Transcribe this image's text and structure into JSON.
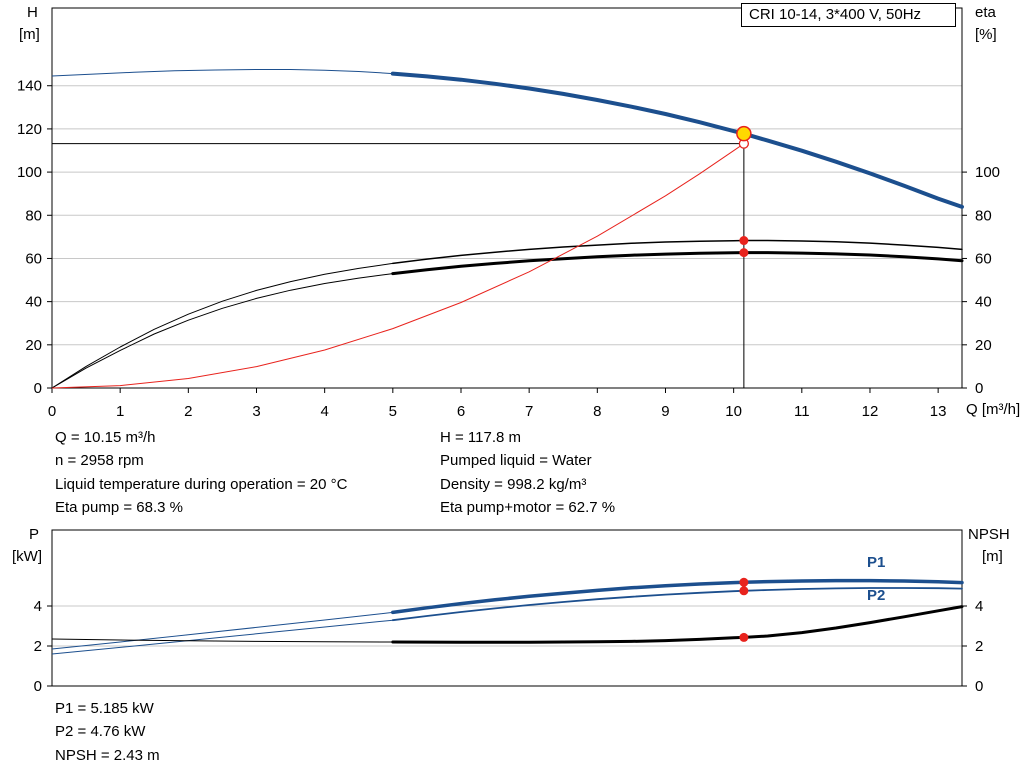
{
  "colors": {
    "blue": "#1c4f8e",
    "black": "#000000",
    "red": "#e8231d",
    "duty_yellow": "#ffd800",
    "grid": "#c8c8c8"
  },
  "chart_data": [
    {
      "id": "hq",
      "type": "line",
      "title": "CRI 10-14, 3*400 V, 50Hz",
      "x_label": "Q [m³/h]",
      "y_left_label": "H",
      "y_left_unit": "[m]",
      "y_right_label": "eta",
      "y_right_unit": "[%]",
      "xlim": [
        0,
        13.35
      ],
      "ylim": [
        0,
        176
      ],
      "x_ticks": [
        0,
        1,
        2,
        3,
        4,
        5,
        6,
        7,
        8,
        9,
        10,
        11,
        12,
        13
      ],
      "y_ticks_left": [
        0,
        20,
        40,
        60,
        80,
        100,
        120,
        140
      ],
      "y_ticks_right": [
        0,
        20,
        40,
        60,
        80,
        100
      ],
      "grid_values": [
        20,
        40,
        60,
        80,
        100,
        120,
        140
      ],
      "series": [
        {
          "name": "head-curve",
          "color": "blue",
          "axis": "left",
          "thin_width": 1,
          "thick_width": 4,
          "thick_from": 5,
          "points": [
            [
              0,
              144.5
            ],
            [
              0.6,
              145.4
            ],
            [
              1.2,
              146.2
            ],
            [
              1.8,
              146.9
            ],
            [
              2.4,
              147.3
            ],
            [
              3,
              147.5
            ],
            [
              3.5,
              147.5
            ],
            [
              4,
              147.2
            ],
            [
              4.5,
              146.6
            ],
            [
              5,
              145.6
            ],
            [
              5.5,
              144.3
            ],
            [
              6,
              142.8
            ],
            [
              6.5,
              140.9
            ],
            [
              7,
              138.7
            ],
            [
              7.5,
              136.2
            ],
            [
              8,
              133.4
            ],
            [
              8.5,
              130.3
            ],
            [
              9,
              126.9
            ],
            [
              9.5,
              123.1
            ],
            [
              10,
              119
            ],
            [
              10.15,
              117.8
            ],
            [
              10.5,
              114.6
            ],
            [
              11,
              109.9
            ],
            [
              11.5,
              104.8
            ],
            [
              12,
              99.4
            ],
            [
              12.5,
              93.7
            ],
            [
              13,
              87.7
            ],
            [
              13.35,
              83.9
            ]
          ]
        },
        {
          "name": "eta-pump-curve",
          "color": "black",
          "axis": "right",
          "thin_width": 1,
          "thick_width": 1.5,
          "thick_from": 5,
          "points": [
            [
              0,
              0
            ],
            [
              0.5,
              10
            ],
            [
              1,
              19
            ],
            [
              1.5,
              27.2
            ],
            [
              2,
              34.2
            ],
            [
              2.5,
              40.2
            ],
            [
              3,
              45.2
            ],
            [
              3.5,
              49.3
            ],
            [
              4,
              52.7
            ],
            [
              4.5,
              55.4
            ],
            [
              5,
              57.7
            ],
            [
              5.5,
              59.7
            ],
            [
              6,
              61.4
            ],
            [
              6.5,
              62.9
            ],
            [
              7,
              64.2
            ],
            [
              7.5,
              65.3
            ],
            [
              8,
              66.2
            ],
            [
              8.5,
              67
            ],
            [
              9,
              67.6
            ],
            [
              9.5,
              68
            ],
            [
              10,
              68.2
            ],
            [
              10.15,
              68.3
            ],
            [
              10.5,
              68.3
            ],
            [
              11,
              68.1
            ],
            [
              11.5,
              67.7
            ],
            [
              12,
              67.1
            ],
            [
              12.5,
              66.2
            ],
            [
              13,
              65.1
            ],
            [
              13.35,
              64.2
            ]
          ]
        },
        {
          "name": "eta-pump-motor-curve",
          "color": "black",
          "axis": "right",
          "thin_width": 1,
          "thick_width": 3,
          "thick_from": 5,
          "points": [
            [
              0,
              0
            ],
            [
              0.5,
              9.2
            ],
            [
              1,
              17.4
            ],
            [
              1.5,
              25
            ],
            [
              2,
              31.4
            ],
            [
              2.5,
              36.9
            ],
            [
              3,
              41.5
            ],
            [
              3.5,
              45.3
            ],
            [
              4,
              48.4
            ],
            [
              4.5,
              50.9
            ],
            [
              5,
              53
            ],
            [
              5.5,
              54.8
            ],
            [
              6,
              56.4
            ],
            [
              6.5,
              57.7
            ],
            [
              7,
              58.9
            ],
            [
              7.5,
              59.9
            ],
            [
              8,
              60.8
            ],
            [
              8.5,
              61.5
            ],
            [
              9,
              62
            ],
            [
              9.5,
              62.4
            ],
            [
              10,
              62.6
            ],
            [
              10.15,
              62.7
            ],
            [
              10.5,
              62.7
            ],
            [
              11,
              62.5
            ],
            [
              11.5,
              62.1
            ],
            [
              12,
              61.6
            ],
            [
              12.5,
              60.8
            ],
            [
              13,
              59.8
            ],
            [
              13.35,
              58.9
            ]
          ]
        },
        {
          "name": "affinity-parabola",
          "color": "red",
          "axis": "left",
          "thin_width": 1,
          "thick_width": 1,
          "thick_from": 99,
          "points": [
            [
              0,
              0
            ],
            [
              1,
              1.1
            ],
            [
              2,
              4.4
            ],
            [
              3,
              9.9
            ],
            [
              4,
              17.6
            ],
            [
              5,
              27.5
            ],
            [
              6,
              39.6
            ],
            [
              7,
              53.8
            ],
            [
              8,
              70.3
            ],
            [
              9,
              89
            ],
            [
              9.5,
              99.2
            ],
            [
              10,
              109.9
            ],
            [
              10.15,
              113.2
            ]
          ]
        }
      ],
      "duty_point": {
        "q": 10.15,
        "h": 117.8
      },
      "requested_point": {
        "q": 10.15,
        "h": 113.2
      },
      "markers": [
        {
          "q": 10.15,
          "v": 68.3
        },
        {
          "q": 10.15,
          "v": 62.7
        }
      ]
    },
    {
      "id": "power",
      "type": "line",
      "x_label": "",
      "y_left_label": "P",
      "y_left_unit": "[kW]",
      "y_right_label": "NPSH",
      "y_right_unit": "[m]",
      "xlim": [
        0,
        13.35
      ],
      "ylim": [
        0,
        7.8
      ],
      "x_ticks": [],
      "y_ticks_left": [
        0,
        2,
        4
      ],
      "y_ticks_right": [
        0,
        2,
        4
      ],
      "grid_values": [
        2,
        4
      ],
      "series": [
        {
          "name": "p1-curve",
          "label": "P1",
          "color": "blue",
          "axis": "left",
          "thin_width": 1,
          "thick_width": 3.5,
          "thick_from": 5,
          "points": [
            [
              0,
              1.85
            ],
            [
              1,
              2.2
            ],
            [
              2,
              2.56
            ],
            [
              3,
              2.93
            ],
            [
              4,
              3.3
            ],
            [
              5,
              3.68
            ],
            [
              5.5,
              3.91
            ],
            [
              6,
              4.12
            ],
            [
              6.5,
              4.31
            ],
            [
              7,
              4.49
            ],
            [
              7.5,
              4.64
            ],
            [
              8,
              4.78
            ],
            [
              8.5,
              4.91
            ],
            [
              9,
              5.01
            ],
            [
              9.5,
              5.1
            ],
            [
              10,
              5.17
            ],
            [
              10.15,
              5.185
            ],
            [
              10.5,
              5.22
            ],
            [
              11,
              5.25
            ],
            [
              11.5,
              5.27
            ],
            [
              12,
              5.27
            ],
            [
              12.5,
              5.25
            ],
            [
              13,
              5.21
            ],
            [
              13.35,
              5.17
            ]
          ]
        },
        {
          "name": "p2-curve",
          "label": "P2",
          "color": "blue",
          "axis": "left",
          "thin_width": 1,
          "thick_width": 1.8,
          "thick_from": 5,
          "points": [
            [
              0,
              1.6
            ],
            [
              1,
              1.93
            ],
            [
              2,
              2.27
            ],
            [
              3,
              2.61
            ],
            [
              4,
              2.95
            ],
            [
              5,
              3.29
            ],
            [
              5.5,
              3.5
            ],
            [
              6,
              3.7
            ],
            [
              6.5,
              3.88
            ],
            [
              7,
              4.05
            ],
            [
              7.5,
              4.2
            ],
            [
              8,
              4.34
            ],
            [
              8.5,
              4.46
            ],
            [
              9,
              4.57
            ],
            [
              9.5,
              4.66
            ],
            [
              10,
              4.74
            ],
            [
              10.15,
              4.76
            ],
            [
              10.5,
              4.8
            ],
            [
              11,
              4.85
            ],
            [
              11.5,
              4.88
            ],
            [
              12,
              4.9
            ],
            [
              12.5,
              4.9
            ],
            [
              13,
              4.89
            ],
            [
              13.35,
              4.87
            ]
          ]
        },
        {
          "name": "npsh-curve",
          "color": "black",
          "axis": "right",
          "thin_width": 1,
          "thick_width": 3,
          "thick_from": 5,
          "points": [
            [
              0,
              2.35
            ],
            [
              1,
              2.3
            ],
            [
              2,
              2.26
            ],
            [
              3,
              2.23
            ],
            [
              4,
              2.21
            ],
            [
              5,
              2.2
            ],
            [
              6,
              2.19
            ],
            [
              7,
              2.19
            ],
            [
              8,
              2.21
            ],
            [
              8.5,
              2.23
            ],
            [
              9,
              2.27
            ],
            [
              9.5,
              2.33
            ],
            [
              10,
              2.41
            ],
            [
              10.15,
              2.43
            ],
            [
              10.5,
              2.5
            ],
            [
              11,
              2.67
            ],
            [
              11.5,
              2.9
            ],
            [
              12,
              3.17
            ],
            [
              12.5,
              3.46
            ],
            [
              13,
              3.76
            ],
            [
              13.35,
              3.97
            ]
          ]
        }
      ],
      "markers": [
        {
          "q": 10.15,
          "v": 5.185
        },
        {
          "q": 10.15,
          "v": 4.76
        },
        {
          "q": 10.15,
          "v": 2.43
        }
      ]
    }
  ],
  "info_top_left": [
    "Q = 10.15 m³/h",
    "n = 2958 rpm",
    "Liquid temperature during operation = 20 °C",
    "Eta pump = 68.3 %"
  ],
  "info_top_right": [
    "H = 117.8 m",
    "Pumped liquid = Water",
    "Density = 998.2 kg/m³",
    "Eta pump+motor = 62.7 %"
  ],
  "info_bottom": [
    "P1 = 5.185 kW",
    "P2 = 4.76 kW",
    "NPSH = 2.43 m"
  ]
}
